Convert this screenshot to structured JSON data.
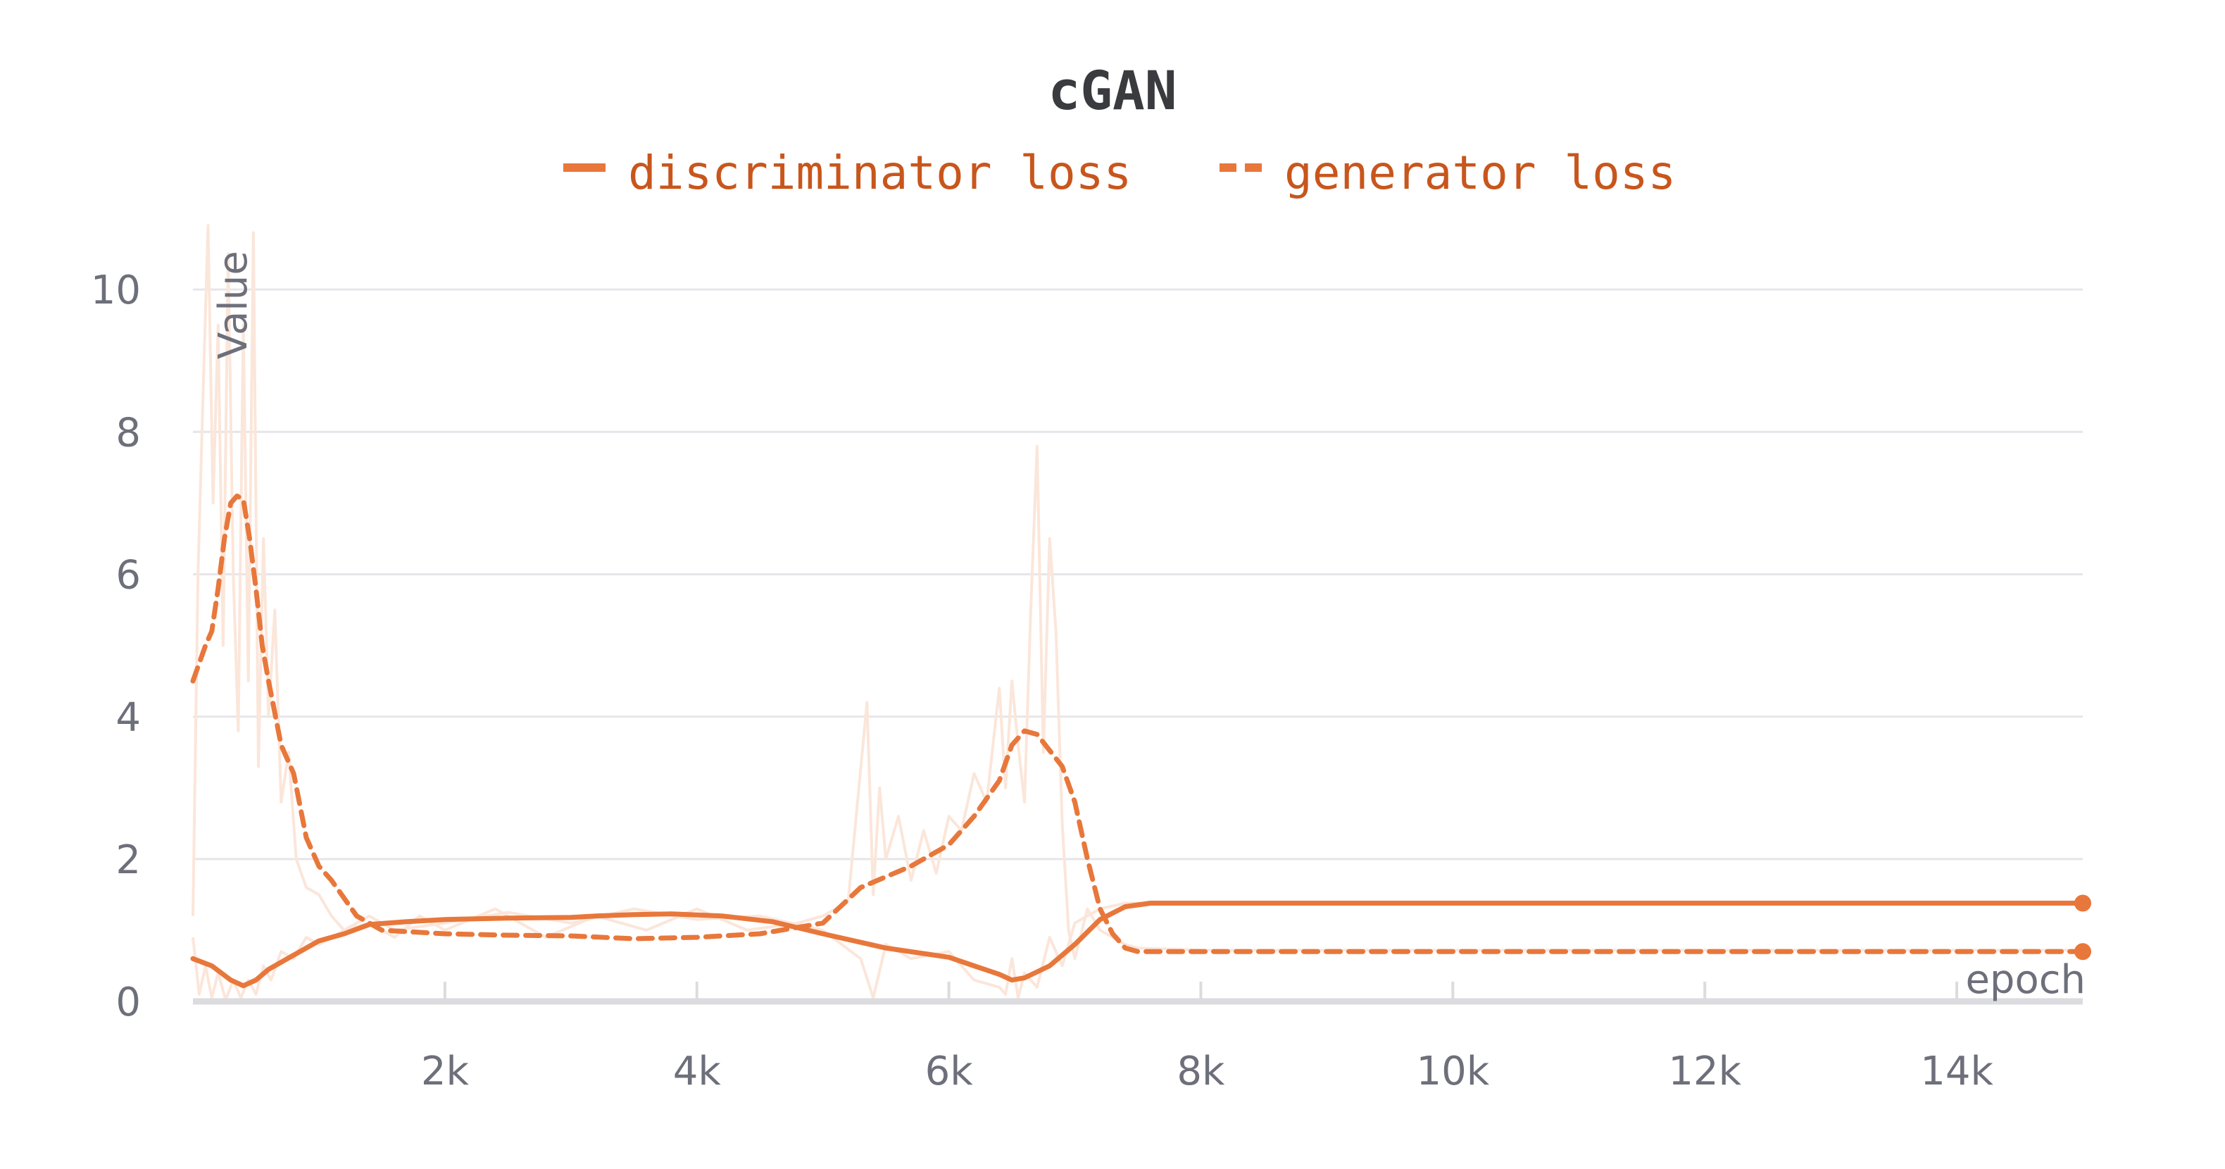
{
  "chart_data": {
    "type": "line",
    "title": "cGAN",
    "xlabel": "epoch",
    "ylabel": "Value",
    "xlim": [
      0,
      15000
    ],
    "ylim": [
      0,
      11
    ],
    "x_ticks": [
      2000,
      4000,
      6000,
      8000,
      10000,
      12000,
      14000
    ],
    "x_tick_labels": [
      "2k",
      "4k",
      "6k",
      "8k",
      "10k",
      "12k",
      "14k"
    ],
    "y_ticks": [
      0,
      2,
      4,
      6,
      8,
      10
    ],
    "y_tick_labels": [
      "0",
      "2",
      "4",
      "6",
      "8",
      "10"
    ],
    "grid": true,
    "legend_position": "top",
    "color": "#e8773b",
    "legend_text_color": "#c8561c",
    "raw_color": "#fbe6da",
    "series": [
      {
        "name": "discriminator loss",
        "style": "solid",
        "x": [
          0,
          150,
          300,
          400,
          500,
          600,
          750,
          900,
          1000,
          1200,
          1400,
          1700,
          2000,
          2500,
          3000,
          3200,
          3500,
          3800,
          4200,
          4600,
          5000,
          5500,
          6000,
          6200,
          6400,
          6500,
          6600,
          6800,
          7000,
          7200,
          7400,
          7600,
          8000,
          10000,
          12000,
          15000
        ],
        "y": [
          0.6,
          0.5,
          0.3,
          0.22,
          0.3,
          0.45,
          0.6,
          0.75,
          0.85,
          0.95,
          1.08,
          1.12,
          1.15,
          1.17,
          1.18,
          1.2,
          1.22,
          1.23,
          1.2,
          1.12,
          0.95,
          0.75,
          0.62,
          0.5,
          0.38,
          0.3,
          0.33,
          0.5,
          0.8,
          1.15,
          1.33,
          1.38,
          1.38,
          1.38,
          1.38,
          1.38
        ]
      },
      {
        "name": "generator loss",
        "style": "dashed",
        "x": [
          0,
          100,
          150,
          200,
          250,
          300,
          350,
          400,
          450,
          500,
          550,
          600,
          700,
          800,
          900,
          1000,
          1100,
          1300,
          1500,
          2000,
          2500,
          3000,
          3500,
          4000,
          4500,
          5000,
          5300,
          5700,
          6000,
          6200,
          6400,
          6500,
          6600,
          6700,
          6900,
          7000,
          7100,
          7200,
          7300,
          7400,
          7500,
          8000,
          10000,
          12000,
          15000
        ],
        "y": [
          4.5,
          5.0,
          5.2,
          5.8,
          6.5,
          7.0,
          7.1,
          7.05,
          6.5,
          5.8,
          5.0,
          4.5,
          3.6,
          3.2,
          2.3,
          1.9,
          1.7,
          1.2,
          1.0,
          0.95,
          0.93,
          0.92,
          0.88,
          0.9,
          0.95,
          1.1,
          1.6,
          1.9,
          2.2,
          2.6,
          3.1,
          3.6,
          3.8,
          3.75,
          3.3,
          2.8,
          2.0,
          1.3,
          0.95,
          0.75,
          0.7,
          0.7,
          0.7,
          0.7,
          0.7
        ]
      }
    ],
    "raw_series": [
      {
        "x": [
          0,
          40,
          80,
          120,
          160,
          200,
          240,
          280,
          320,
          360,
          400,
          440,
          480,
          520,
          560,
          600,
          650,
          700,
          760,
          820,
          900,
          1000,
          1100,
          1200,
          1400,
          1600,
          1800,
          2000,
          2400,
          2800,
          3200,
          3600,
          4000,
          4400,
          4800,
          5000,
          5200,
          5350,
          5400,
          5450,
          5500,
          5600,
          5700,
          5800,
          5900,
          6000,
          6100,
          6200,
          6300,
          6400,
          6450,
          6500,
          6550,
          6600,
          6650,
          6700,
          6750,
          6800,
          6850,
          6900,
          6950,
          7000,
          7100,
          7200,
          7300,
          7400,
          7500,
          8000,
          10000,
          12000,
          15000
        ],
        "y": [
          1.2,
          6.0,
          8.5,
          10.9,
          7.0,
          9.5,
          5.0,
          10.5,
          6.0,
          3.8,
          9.5,
          4.5,
          10.8,
          3.3,
          6.5,
          4.0,
          5.5,
          2.8,
          3.5,
          2.0,
          1.6,
          1.5,
          1.2,
          1.0,
          1.1,
          0.9,
          1.2,
          1.0,
          1.3,
          0.9,
          1.2,
          1.0,
          1.3,
          1.0,
          1.1,
          1.2,
          1.4,
          4.2,
          1.5,
          3.0,
          2.0,
          2.6,
          1.7,
          2.4,
          1.8,
          2.6,
          2.4,
          3.2,
          2.8,
          4.4,
          3.0,
          4.5,
          3.6,
          2.8,
          5.5,
          7.8,
          3.5,
          6.5,
          5.2,
          2.5,
          1.0,
          0.6,
          1.3,
          1.0,
          0.9,
          0.8,
          0.75,
          0.72,
          0.72,
          0.72,
          0.72
        ]
      },
      {
        "x": [
          0,
          50,
          100,
          150,
          200,
          260,
          320,
          380,
          440,
          500,
          560,
          620,
          700,
          800,
          900,
          1000,
          1200,
          1400,
          1600,
          2000,
          2500,
          3000,
          3500,
          4000,
          4500,
          5000,
          5300,
          5400,
          5500,
          5700,
          6000,
          6200,
          6400,
          6450,
          6500,
          6550,
          6600,
          6700,
          6800,
          6900,
          7000,
          7200,
          7400,
          8000,
          15000
        ],
        "y": [
          0.9,
          0.1,
          0.5,
          0.05,
          0.4,
          0.02,
          0.3,
          0.05,
          0.3,
          0.1,
          0.5,
          0.3,
          0.7,
          0.6,
          0.9,
          0.8,
          1.0,
          1.2,
          1.0,
          1.1,
          1.25,
          1.1,
          1.3,
          1.15,
          1.2,
          1.0,
          0.6,
          0.05,
          0.8,
          0.6,
          0.7,
          0.3,
          0.2,
          0.1,
          0.6,
          0.05,
          0.4,
          0.2,
          0.9,
          0.5,
          1.1,
          1.3,
          1.38,
          1.38,
          1.38
        ]
      }
    ]
  }
}
